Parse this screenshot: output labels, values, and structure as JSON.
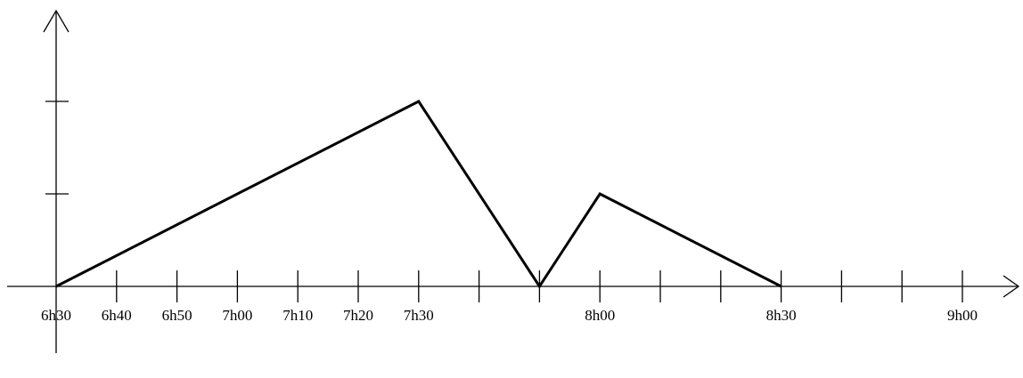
{
  "chart_data": {
    "type": "line",
    "title": "",
    "xlabel": "",
    "ylabel": "",
    "grid": false,
    "x_ticks": [
      "6h30",
      "6h40",
      "6h50",
      "7h00",
      "7h10",
      "7h20",
      "7h30",
      "7h40",
      "7h50",
      "8h00",
      "8h10",
      "8h20",
      "8h30",
      "8h40",
      "8h50",
      "9h00"
    ],
    "x_tick_labels": [
      "6h30",
      "6h40",
      "6h50",
      "7h00",
      "7h10",
      "7h20",
      "7h30",
      "",
      "",
      "8h00",
      "",
      "",
      "8h30",
      "",
      "",
      "9h00"
    ],
    "y_ticks": [
      0,
      1,
      2
    ],
    "xlim_minutes_from_first_tick": [
      0,
      90
    ],
    "ylim": [
      0,
      2
    ],
    "series": [
      {
        "x": [
          "6h30",
          "7h30",
          "7h50",
          "8h00",
          "8h30"
        ],
        "y": [
          0,
          2,
          0,
          1,
          0
        ]
      }
    ]
  }
}
